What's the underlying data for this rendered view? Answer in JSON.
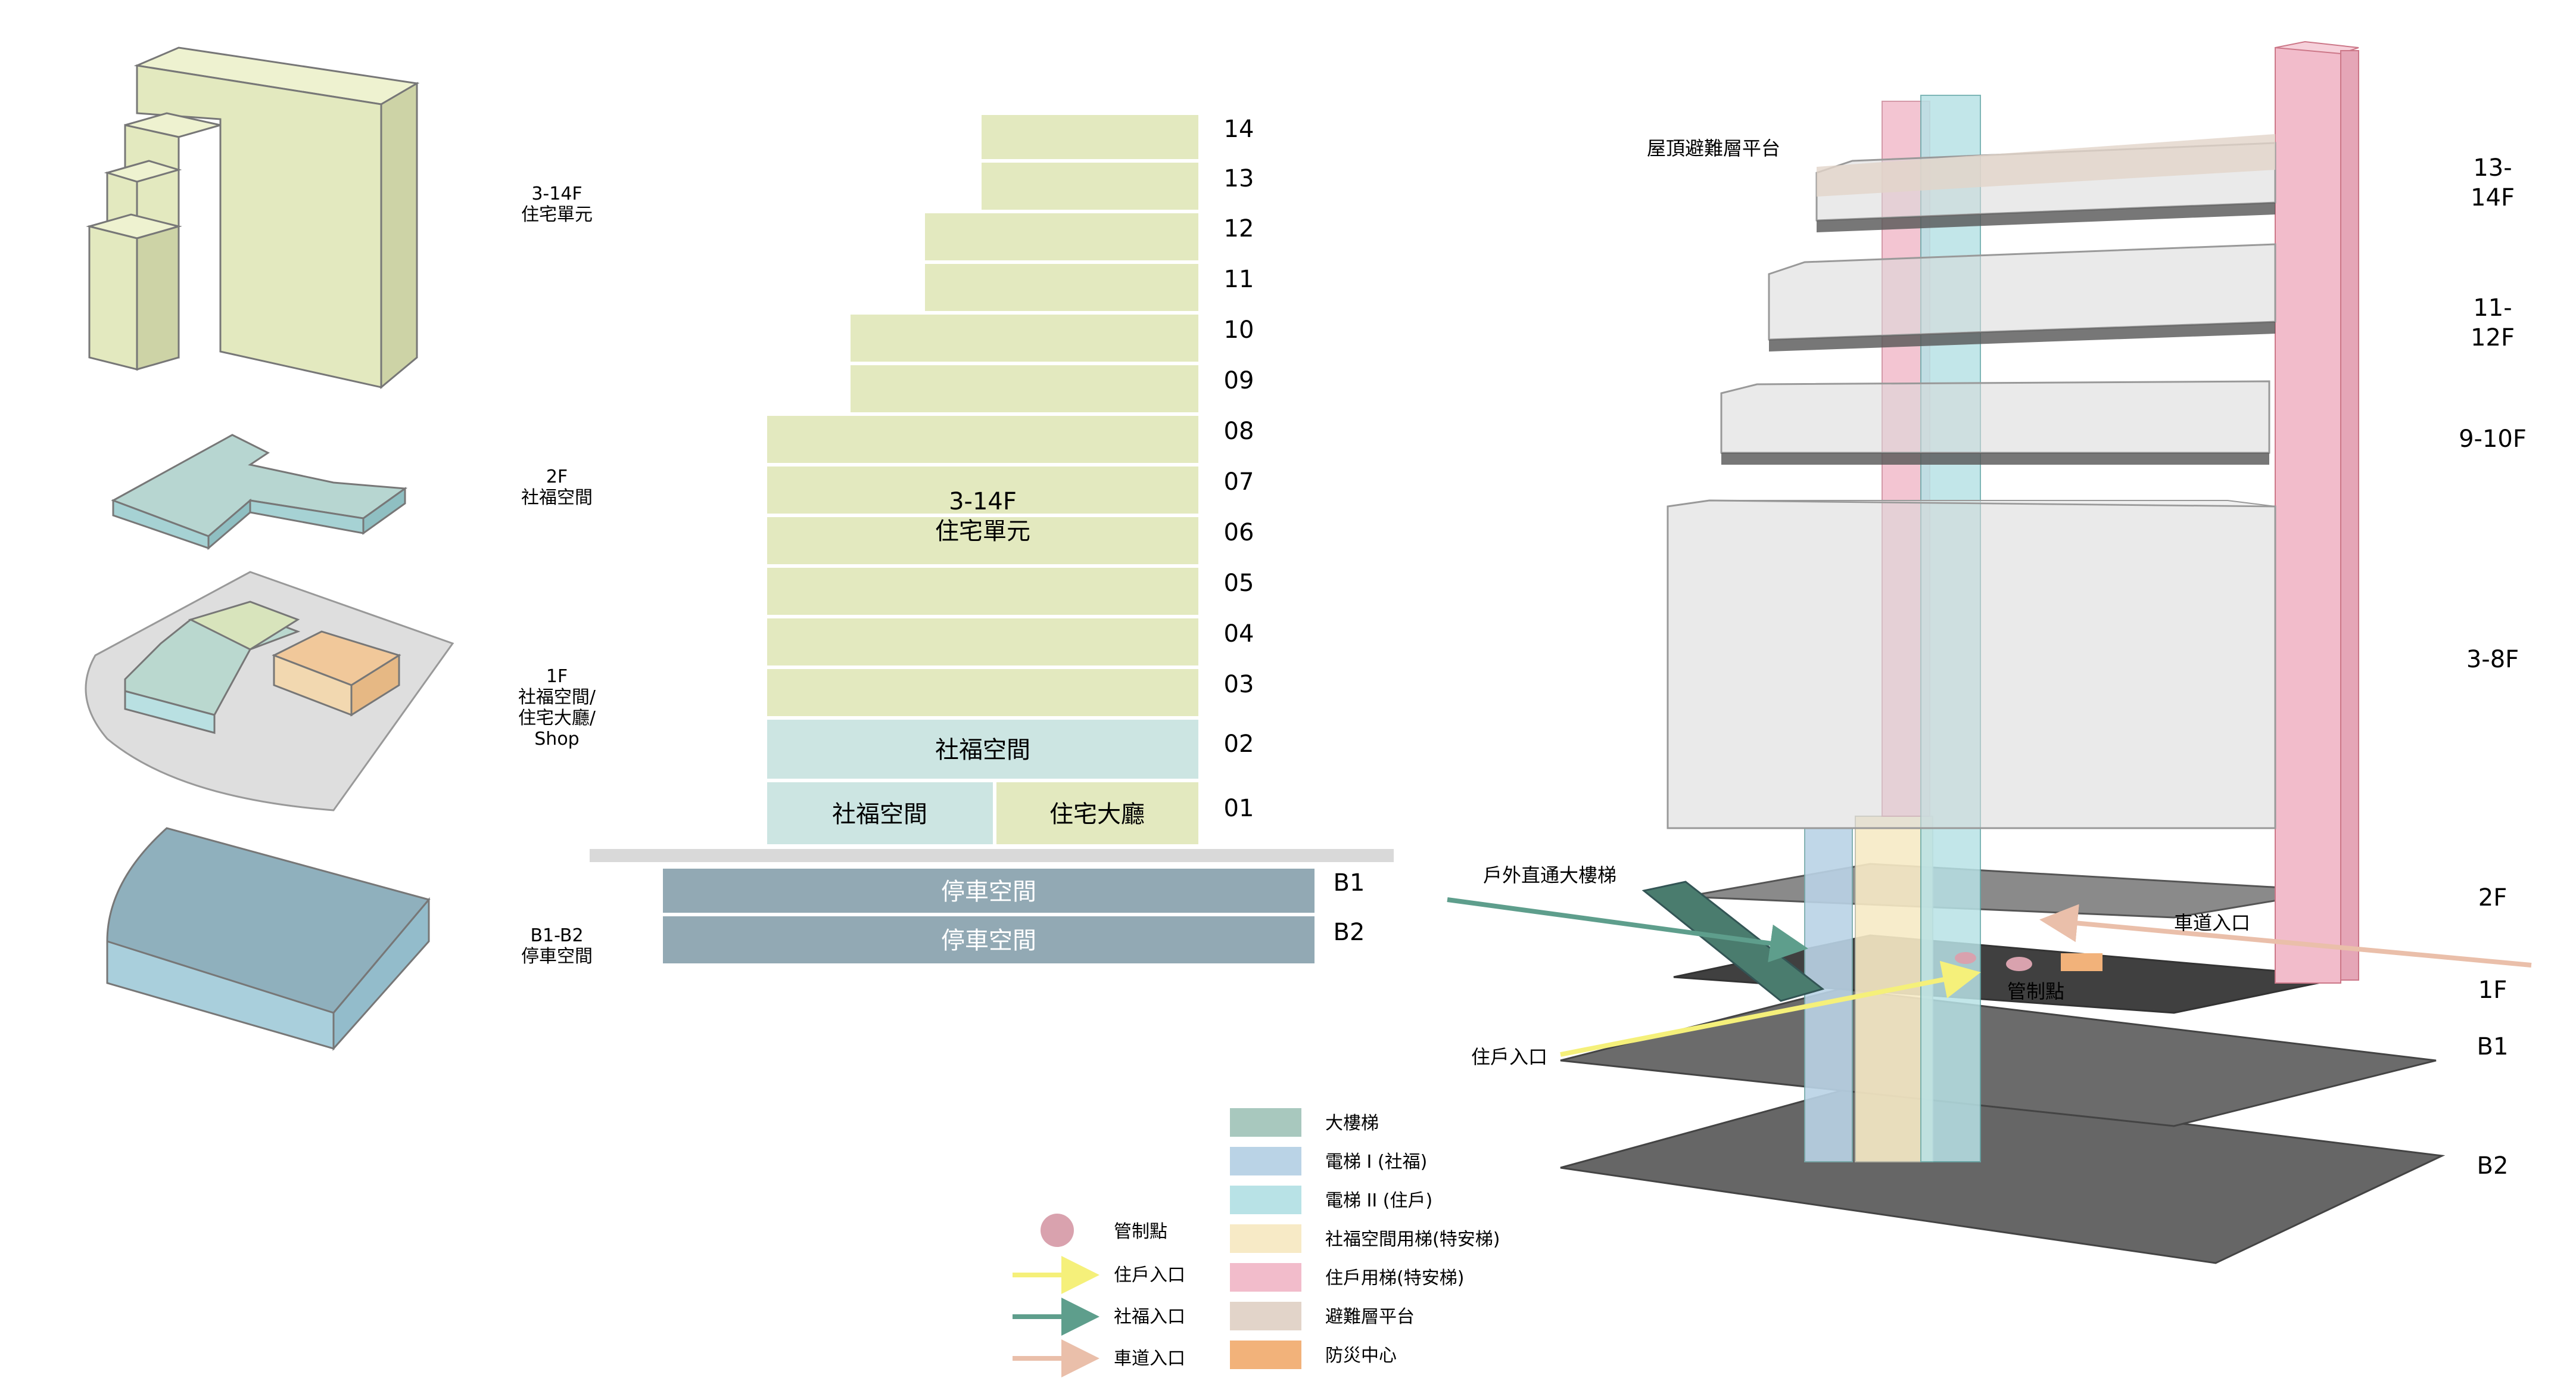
{
  "massing": {
    "labels": [
      {
        "line1": "3-14F",
        "line2": "住宅單元"
      },
      {
        "line1": "2F",
        "line2": "社福空間"
      },
      {
        "line1": "1F",
        "line2": "社福空間/",
        "line3": "住宅大廳/",
        "line4": "Shop"
      },
      {
        "line1": "B1-B2",
        "line2": "停車空間"
      }
    ]
  },
  "section": {
    "floor_numbers": [
      "14",
      "13",
      "12",
      "11",
      "10",
      "09",
      "08",
      "07",
      "06",
      "05",
      "04",
      "03",
      "02",
      "01"
    ],
    "residential_title": "3-14F",
    "residential_subtitle": "住宅單元",
    "social_2f": "社福空間",
    "social_1f": "社福空間",
    "lobby_1f": "住宅大廳",
    "parking_b1": "停車空間",
    "parking_b2": "停車空間",
    "basement_labels": [
      "B1",
      "B2"
    ]
  },
  "axo": {
    "roof_label": "屋頂避難層平台",
    "stair_label": "戶外直通大樓梯",
    "ramp_label": "車道入口",
    "control_label": "管制點",
    "resident_label": "住戶入口",
    "level_labels": [
      {
        "a": "13-",
        "b": "14F"
      },
      {
        "a": "11-",
        "b": "12F"
      },
      {
        "a": "9-10F",
        "b": ""
      },
      {
        "a": "3-8F",
        "b": ""
      },
      {
        "a": "2F",
        "b": ""
      },
      {
        "a": "1F",
        "b": ""
      },
      {
        "a": "B1",
        "b": ""
      },
      {
        "a": "B2",
        "b": ""
      }
    ]
  },
  "legend": {
    "left": [
      {
        "label": "管制點",
        "icon": "circle",
        "color": "#d9a2ae"
      },
      {
        "label": "住戶入口",
        "icon": "arrow",
        "color": "#f5f07a"
      },
      {
        "label": "社福入口",
        "icon": "arrow",
        "color": "#5e9e8c"
      },
      {
        "label": "車道入口",
        "icon": "arrow",
        "color": "#eabfaa"
      }
    ],
    "right": [
      {
        "label": "大樓梯",
        "color": "#a8c8be"
      },
      {
        "label": "電梯 I (社福)",
        "color": "#bad3e6"
      },
      {
        "label": "電梯 II (住戶)",
        "color": "#b8e2e6"
      },
      {
        "label": "社福空間用梯(特安梯)",
        "color": "#f7eac6"
      },
      {
        "label": "住戶用梯(特安梯)",
        "color": "#f2bccb"
      },
      {
        "label": "避難層平台",
        "color": "#e2d4c9"
      },
      {
        "label": "防災中心",
        "color": "#f2b27a"
      }
    ]
  }
}
